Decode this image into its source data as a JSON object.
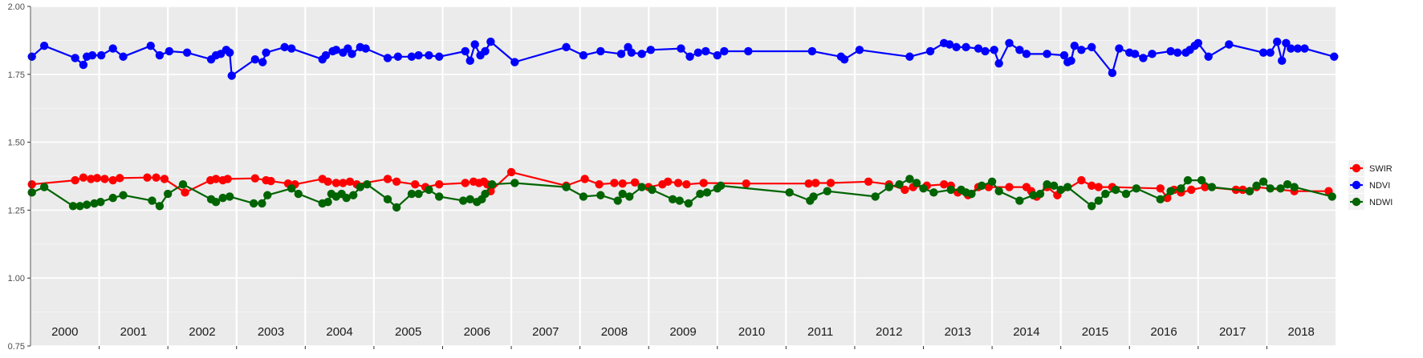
{
  "chart_data": {
    "type": "line",
    "title": "",
    "xlabel": "",
    "ylabel": "",
    "ylim": [
      0.75,
      2.0
    ],
    "yticks": [
      "0.75",
      "1.00",
      "1.25",
      "1.50",
      "1.75",
      "2.00"
    ],
    "xlim": [
      2000.0,
      2019.0
    ],
    "year_labels": [
      "2000",
      "2001",
      "2002",
      "2003",
      "2004",
      "2005",
      "2006",
      "2007",
      "2008",
      "2009",
      "2010",
      "2011",
      "2012",
      "2013",
      "2014",
      "2015",
      "2016",
      "2017",
      "2018"
    ],
    "grid": "on",
    "legend_position": "right",
    "series": [
      {
        "name": "SWIR",
        "color": "#ff0000",
        "points": [
          [
            2000.02,
            1.345
          ],
          [
            2000.65,
            1.36
          ],
          [
            2000.77,
            1.37
          ],
          [
            2000.88,
            1.365
          ],
          [
            2000.97,
            1.368
          ],
          [
            2001.08,
            1.365
          ],
          [
            2001.2,
            1.36
          ],
          [
            2001.3,
            1.368
          ],
          [
            2001.7,
            1.37
          ],
          [
            2001.83,
            1.37
          ],
          [
            2001.95,
            1.365
          ],
          [
            2002.25,
            1.315
          ],
          [
            2002.62,
            1.36
          ],
          [
            2002.7,
            1.365
          ],
          [
            2002.8,
            1.36
          ],
          [
            2002.87,
            1.365
          ],
          [
            2003.27,
            1.367
          ],
          [
            2003.43,
            1.36
          ],
          [
            2003.5,
            1.357
          ],
          [
            2003.75,
            1.348
          ],
          [
            2003.85,
            1.345
          ],
          [
            2004.25,
            1.365
          ],
          [
            2004.33,
            1.355
          ],
          [
            2004.45,
            1.35
          ],
          [
            2004.55,
            1.35
          ],
          [
            2004.65,
            1.355
          ],
          [
            2004.75,
            1.345
          ],
          [
            2005.2,
            1.365
          ],
          [
            2005.33,
            1.355
          ],
          [
            2005.6,
            1.345
          ],
          [
            2005.75,
            1.335
          ],
          [
            2005.95,
            1.345
          ],
          [
            2006.33,
            1.35
          ],
          [
            2006.45,
            1.355
          ],
          [
            2006.53,
            1.35
          ],
          [
            2006.6,
            1.355
          ],
          [
            2006.65,
            1.345
          ],
          [
            2006.7,
            1.32
          ],
          [
            2007.0,
            1.39
          ],
          [
            2007.8,
            1.34
          ],
          [
            2008.07,
            1.365
          ],
          [
            2008.28,
            1.345
          ],
          [
            2008.5,
            1.35
          ],
          [
            2008.62,
            1.348
          ],
          [
            2008.8,
            1.352
          ],
          [
            2009.0,
            1.335
          ],
          [
            2009.2,
            1.345
          ],
          [
            2009.28,
            1.355
          ],
          [
            2009.43,
            1.35
          ],
          [
            2009.55,
            1.345
          ],
          [
            2009.8,
            1.35
          ],
          [
            2010.42,
            1.348
          ],
          [
            2011.33,
            1.348
          ],
          [
            2011.43,
            1.35
          ],
          [
            2011.65,
            1.35
          ],
          [
            2012.2,
            1.355
          ],
          [
            2012.5,
            1.345
          ],
          [
            2012.73,
            1.325
          ],
          [
            2012.85,
            1.335
          ],
          [
            2013.05,
            1.34
          ],
          [
            2013.3,
            1.345
          ],
          [
            2013.4,
            1.34
          ],
          [
            2013.5,
            1.315
          ],
          [
            2013.65,
            1.305
          ],
          [
            2013.8,
            1.335
          ],
          [
            2013.95,
            1.335
          ],
          [
            2014.25,
            1.335
          ],
          [
            2014.5,
            1.335
          ],
          [
            2014.57,
            1.32
          ],
          [
            2014.65,
            1.3
          ],
          [
            2014.8,
            1.335
          ],
          [
            2014.95,
            1.305
          ],
          [
            2015.3,
            1.36
          ],
          [
            2015.45,
            1.34
          ],
          [
            2015.55,
            1.335
          ],
          [
            2015.75,
            1.335
          ],
          [
            2016.45,
            1.33
          ],
          [
            2016.55,
            1.295
          ],
          [
            2016.65,
            1.325
          ],
          [
            2016.75,
            1.315
          ],
          [
            2016.9,
            1.325
          ],
          [
            2017.1,
            1.335
          ],
          [
            2017.55,
            1.325
          ],
          [
            2017.65,
            1.325
          ],
          [
            2017.75,
            1.32
          ],
          [
            2017.85,
            1.335
          ],
          [
            2018.4,
            1.32
          ],
          [
            2018.9,
            1.32
          ]
        ]
      },
      {
        "name": "NDVI",
        "color": "#0000ff",
        "points": [
          [
            2000.02,
            1.815
          ],
          [
            2000.2,
            1.855
          ],
          [
            2000.65,
            1.81
          ],
          [
            2000.77,
            1.785
          ],
          [
            2000.82,
            1.815
          ],
          [
            2000.9,
            1.82
          ],
          [
            2001.03,
            1.82
          ],
          [
            2001.2,
            1.845
          ],
          [
            2001.35,
            1.815
          ],
          [
            2001.75,
            1.855
          ],
          [
            2001.88,
            1.82
          ],
          [
            2002.02,
            1.835
          ],
          [
            2002.28,
            1.83
          ],
          [
            2002.63,
            1.805
          ],
          [
            2002.7,
            1.82
          ],
          [
            2002.77,
            1.825
          ],
          [
            2002.85,
            1.84
          ],
          [
            2002.9,
            1.83
          ],
          [
            2002.93,
            1.745
          ],
          [
            2003.27,
            1.805
          ],
          [
            2003.38,
            1.795
          ],
          [
            2003.43,
            1.83
          ],
          [
            2003.7,
            1.85
          ],
          [
            2003.8,
            1.845
          ],
          [
            2004.25,
            1.805
          ],
          [
            2004.3,
            1.82
          ],
          [
            2004.4,
            1.835
          ],
          [
            2004.45,
            1.84
          ],
          [
            2004.55,
            1.83
          ],
          [
            2004.62,
            1.845
          ],
          [
            2004.68,
            1.825
          ],
          [
            2004.8,
            1.85
          ],
          [
            2004.88,
            1.845
          ],
          [
            2005.2,
            1.81
          ],
          [
            2005.35,
            1.815
          ],
          [
            2005.55,
            1.815
          ],
          [
            2005.65,
            1.82
          ],
          [
            2005.8,
            1.82
          ],
          [
            2005.95,
            1.815
          ],
          [
            2006.33,
            1.835
          ],
          [
            2006.4,
            1.8
          ],
          [
            2006.47,
            1.86
          ],
          [
            2006.55,
            1.82
          ],
          [
            2006.62,
            1.835
          ],
          [
            2006.7,
            1.87
          ],
          [
            2007.05,
            1.795
          ],
          [
            2007.8,
            1.85
          ],
          [
            2008.05,
            1.82
          ],
          [
            2008.3,
            1.835
          ],
          [
            2008.6,
            1.825
          ],
          [
            2008.7,
            1.85
          ],
          [
            2008.75,
            1.83
          ],
          [
            2008.9,
            1.825
          ],
          [
            2009.03,
            1.84
          ],
          [
            2009.47,
            1.845
          ],
          [
            2009.6,
            1.815
          ],
          [
            2009.72,
            1.83
          ],
          [
            2009.83,
            1.835
          ],
          [
            2010.0,
            1.82
          ],
          [
            2010.1,
            1.835
          ],
          [
            2010.45,
            1.835
          ],
          [
            2011.38,
            1.835
          ],
          [
            2011.8,
            1.815
          ],
          [
            2011.85,
            1.805
          ],
          [
            2012.07,
            1.84
          ],
          [
            2012.8,
            1.815
          ],
          [
            2013.1,
            1.835
          ],
          [
            2013.3,
            1.865
          ],
          [
            2013.38,
            1.86
          ],
          [
            2013.48,
            1.85
          ],
          [
            2013.62,
            1.85
          ],
          [
            2013.8,
            1.845
          ],
          [
            2013.9,
            1.835
          ],
          [
            2014.03,
            1.84
          ],
          [
            2014.1,
            1.79
          ],
          [
            2014.25,
            1.865
          ],
          [
            2014.4,
            1.84
          ],
          [
            2014.5,
            1.825
          ],
          [
            2014.8,
            1.825
          ],
          [
            2015.05,
            1.82
          ],
          [
            2015.1,
            1.795
          ],
          [
            2015.15,
            1.8
          ],
          [
            2015.2,
            1.855
          ],
          [
            2015.3,
            1.84
          ],
          [
            2015.45,
            1.85
          ],
          [
            2015.75,
            1.755
          ],
          [
            2015.85,
            1.845
          ],
          [
            2016.0,
            1.83
          ],
          [
            2016.08,
            1.825
          ],
          [
            2016.2,
            1.81
          ],
          [
            2016.33,
            1.825
          ],
          [
            2016.6,
            1.835
          ],
          [
            2016.7,
            1.83
          ],
          [
            2016.82,
            1.83
          ],
          [
            2016.88,
            1.84
          ],
          [
            2016.95,
            1.855
          ],
          [
            2017.0,
            1.865
          ],
          [
            2017.15,
            1.815
          ],
          [
            2017.45,
            1.86
          ],
          [
            2017.95,
            1.83
          ],
          [
            2018.05,
            1.83
          ],
          [
            2018.15,
            1.87
          ],
          [
            2018.22,
            1.8
          ],
          [
            2018.28,
            1.865
          ],
          [
            2018.35,
            1.845
          ],
          [
            2018.45,
            1.845
          ],
          [
            2018.55,
            1.845
          ],
          [
            2018.98,
            1.815
          ]
        ]
      },
      {
        "name": "NDWI",
        "color": "#006400",
        "points": [
          [
            2000.02,
            1.315
          ],
          [
            2000.2,
            1.335
          ],
          [
            2000.62,
            1.265
          ],
          [
            2000.72,
            1.265
          ],
          [
            2000.82,
            1.27
          ],
          [
            2000.93,
            1.275
          ],
          [
            2001.02,
            1.28
          ],
          [
            2001.2,
            1.295
          ],
          [
            2001.35,
            1.305
          ],
          [
            2001.77,
            1.285
          ],
          [
            2001.88,
            1.265
          ],
          [
            2002.0,
            1.31
          ],
          [
            2002.22,
            1.345
          ],
          [
            2002.63,
            1.29
          ],
          [
            2002.7,
            1.28
          ],
          [
            2002.8,
            1.295
          ],
          [
            2002.9,
            1.3
          ],
          [
            2003.25,
            1.275
          ],
          [
            2003.37,
            1.275
          ],
          [
            2003.45,
            1.305
          ],
          [
            2003.8,
            1.33
          ],
          [
            2003.9,
            1.31
          ],
          [
            2004.25,
            1.275
          ],
          [
            2004.33,
            1.28
          ],
          [
            2004.38,
            1.31
          ],
          [
            2004.45,
            1.3
          ],
          [
            2004.53,
            1.31
          ],
          [
            2004.6,
            1.295
          ],
          [
            2004.7,
            1.305
          ],
          [
            2004.8,
            1.335
          ],
          [
            2004.9,
            1.345
          ],
          [
            2005.2,
            1.29
          ],
          [
            2005.33,
            1.26
          ],
          [
            2005.55,
            1.31
          ],
          [
            2005.65,
            1.31
          ],
          [
            2005.8,
            1.325
          ],
          [
            2005.95,
            1.3
          ],
          [
            2006.3,
            1.285
          ],
          [
            2006.4,
            1.29
          ],
          [
            2006.5,
            1.28
          ],
          [
            2006.57,
            1.29
          ],
          [
            2006.62,
            1.31
          ],
          [
            2006.72,
            1.345
          ],
          [
            2007.05,
            1.35
          ],
          [
            2007.8,
            1.335
          ],
          [
            2008.05,
            1.3
          ],
          [
            2008.3,
            1.305
          ],
          [
            2008.55,
            1.285
          ],
          [
            2008.62,
            1.31
          ],
          [
            2008.72,
            1.3
          ],
          [
            2008.9,
            1.335
          ],
          [
            2009.05,
            1.325
          ],
          [
            2009.35,
            1.29
          ],
          [
            2009.45,
            1.285
          ],
          [
            2009.58,
            1.275
          ],
          [
            2009.75,
            1.31
          ],
          [
            2009.85,
            1.315
          ],
          [
            2010.0,
            1.33
          ],
          [
            2010.05,
            1.34
          ],
          [
            2011.05,
            1.315
          ],
          [
            2011.35,
            1.285
          ],
          [
            2011.4,
            1.3
          ],
          [
            2011.6,
            1.32
          ],
          [
            2012.3,
            1.3
          ],
          [
            2012.5,
            1.335
          ],
          [
            2012.65,
            1.345
          ],
          [
            2012.8,
            1.365
          ],
          [
            2012.9,
            1.35
          ],
          [
            2013.0,
            1.33
          ],
          [
            2013.15,
            1.315
          ],
          [
            2013.4,
            1.325
          ],
          [
            2013.55,
            1.325
          ],
          [
            2013.62,
            1.315
          ],
          [
            2013.7,
            1.31
          ],
          [
            2013.85,
            1.34
          ],
          [
            2014.0,
            1.355
          ],
          [
            2014.1,
            1.32
          ],
          [
            2014.4,
            1.285
          ],
          [
            2014.6,
            1.305
          ],
          [
            2014.7,
            1.31
          ],
          [
            2014.8,
            1.345
          ],
          [
            2014.9,
            1.34
          ],
          [
            2015.0,
            1.325
          ],
          [
            2015.1,
            1.335
          ],
          [
            2015.45,
            1.265
          ],
          [
            2015.55,
            1.285
          ],
          [
            2015.65,
            1.31
          ],
          [
            2015.8,
            1.325
          ],
          [
            2015.95,
            1.31
          ],
          [
            2016.1,
            1.33
          ],
          [
            2016.45,
            1.29
          ],
          [
            2016.6,
            1.32
          ],
          [
            2016.75,
            1.33
          ],
          [
            2016.85,
            1.36
          ],
          [
            2017.05,
            1.36
          ],
          [
            2017.2,
            1.335
          ],
          [
            2017.75,
            1.32
          ],
          [
            2017.85,
            1.34
          ],
          [
            2017.95,
            1.355
          ],
          [
            2018.05,
            1.33
          ],
          [
            2018.2,
            1.33
          ],
          [
            2018.3,
            1.345
          ],
          [
            2018.4,
            1.335
          ],
          [
            2018.95,
            1.3
          ]
        ]
      }
    ]
  }
}
